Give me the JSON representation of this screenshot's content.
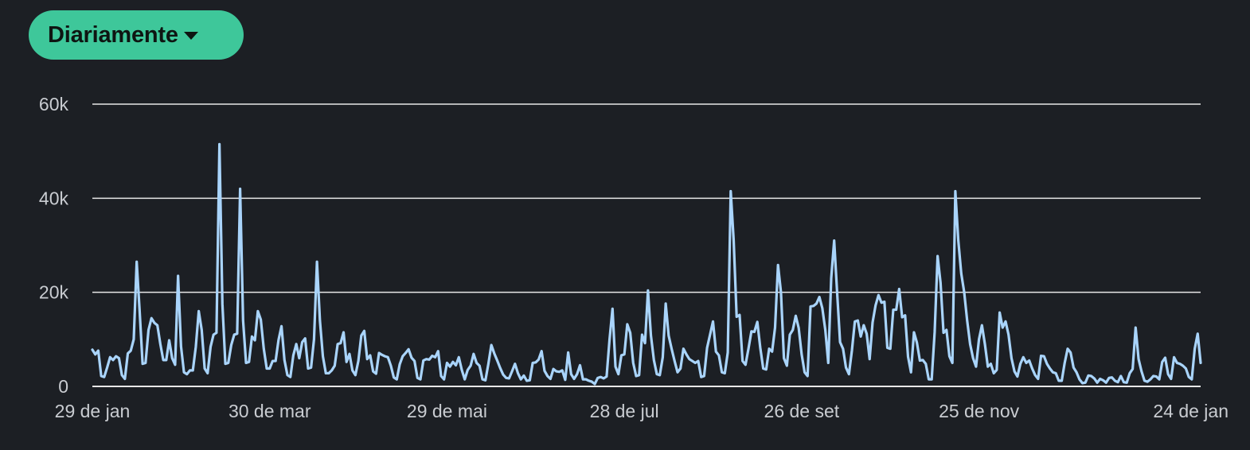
{
  "controls": {
    "period_label": "Diariamente",
    "period_icon": "caret-down-icon"
  },
  "colors": {
    "background": "#1c1f24",
    "button": "#3ec79a",
    "line": "#a9d4fb",
    "grid": "#e8e8e8",
    "tick_text": "#c9ccd1"
  },
  "chart_data": {
    "type": "line",
    "title": "",
    "xlabel": "",
    "ylabel": "",
    "ylim": [
      0,
      60000
    ],
    "yticks": [
      0,
      20000,
      40000,
      60000
    ],
    "ytick_labels": [
      "0",
      "20k",
      "40k",
      "60k"
    ],
    "x_start": "29 de jan",
    "x_end": "24 de jan",
    "xtick_labels": [
      "29 de jan",
      "30 de mar",
      "29 de mai",
      "28 de jul",
      "26 de set",
      "25 de nov",
      "24 de jan"
    ],
    "xtick_index": [
      0,
      60,
      120,
      180,
      240,
      300,
      360
    ],
    "grid": "horizontal",
    "legend": "none",
    "series": [
      {
        "values": [
          7800,
          6800,
          7600,
          2200,
          2000,
          4000,
          6200,
          5600,
          6400,
          6000,
          2400,
          1600,
          7000,
          7600,
          10000,
          26500,
          16000,
          4800,
          5000,
          12000,
          14500,
          13500,
          13000,
          9000,
          5600,
          5600,
          9800,
          6000,
          4600,
          23500,
          8500,
          3000,
          2600,
          3400,
          3400,
          8400,
          16000,
          12000,
          3800,
          2800,
          8400,
          11000,
          11400,
          51500,
          17500,
          4800,
          5000,
          8800,
          11000,
          11200,
          42000,
          14000,
          5000,
          5200,
          10600,
          9800,
          16000,
          14200,
          8000,
          3800,
          3800,
          5400,
          5400,
          9900,
          12800,
          5600,
          2400,
          2000,
          6600,
          9000,
          6000,
          9400,
          10200,
          3800,
          4000,
          10000,
          26500,
          14000,
          6400,
          2800,
          2800,
          3400,
          4400,
          9000,
          9200,
          11500,
          5200,
          6900,
          3400,
          2400,
          5400,
          10800,
          11800,
          5800,
          6600,
          3200,
          2700,
          7100,
          6700,
          6400,
          6200,
          4400,
          1900,
          1500,
          4700,
          6400,
          7100,
          7900,
          6100,
          5400,
          1800,
          1500,
          5500,
          5800,
          5700,
          6500,
          6200,
          7500,
          2200,
          1500,
          5000,
          4200,
          5200,
          4500,
          6200,
          3500,
          1500,
          3500,
          4400,
          6900,
          5000,
          4400,
          1500,
          1300,
          4800,
          8800,
          7000,
          5500,
          3900,
          2500,
          1800,
          1700,
          3200,
          4800,
          2800,
          1500,
          2300,
          1200,
          1300,
          5000,
          5100,
          5700,
          7500,
          3300,
          2200,
          1600,
          3700,
          3200,
          3100,
          3400,
          1400,
          7200,
          2600,
          1600,
          2600,
          4500,
          1500,
          1500,
          1200,
          1000,
          500,
          1800,
          2000,
          1700,
          2100,
          10000,
          16500,
          4200,
          2600,
          6600,
          6800,
          13200,
          11400,
          5000,
          2200,
          2400,
          11000,
          9200,
          20400,
          10800,
          5600,
          2600,
          2400,
          6200,
          17600,
          10800,
          8000,
          5400,
          3000,
          3800,
          8000,
          6800,
          5800,
          5400,
          5000,
          5400,
          2000,
          2200,
          8200,
          11000,
          13800,
          7400,
          6600,
          3000,
          2800,
          7200,
          41500,
          31000,
          14800,
          15200,
          5400,
          4600,
          8000,
          11700,
          11600,
          13700,
          8200,
          3800,
          3600,
          8000,
          7400,
          12500,
          25800,
          20000,
          6000,
          4400,
          11000,
          12000,
          15000,
          12400,
          6800,
          3000,
          2200,
          17000,
          17100,
          17600,
          19000,
          16600,
          12000,
          5000,
          23000,
          31000,
          20000,
          9400,
          8000,
          4000,
          2600,
          7600,
          13800,
          14000,
          10600,
          13000,
          11200,
          5800,
          13600,
          17200,
          19400,
          17800,
          18000,
          8200,
          8000,
          16300,
          16300,
          20700,
          14700,
          15100,
          6300,
          3000,
          11500,
          9300,
          5500,
          5600,
          4800,
          1500,
          1500,
          11500,
          27700,
          22000,
          11400,
          12000,
          6400,
          5000,
          41500,
          31000,
          24000,
          20000,
          14000,
          9000,
          6000,
          4200,
          10000,
          13000,
          9000,
          4200,
          4800,
          2800,
          3500,
          15700,
          12500,
          13800,
          11000,
          6000,
          3200,
          2100,
          4800,
          6200,
          5000,
          5500,
          3800,
          2400,
          1600,
          6500,
          6400,
          4800,
          3800,
          3000,
          2800,
          1200,
          1200,
          5000,
          8000,
          7200,
          4000,
          3000,
          1500,
          700,
          800,
          2300,
          2200,
          1700,
          800,
          1600,
          1300,
          800,
          1800,
          1900,
          1200,
          900,
          2200,
          900,
          800,
          2800,
          3700,
          12500,
          5800,
          3200,
          1200,
          1000,
          1500,
          2200,
          2100,
          1500,
          5200,
          6100,
          2600,
          1600,
          6200,
          5000,
          4800,
          4400,
          3800,
          2000,
          1500,
          8000,
          11200,
          5000
        ]
      }
    ]
  }
}
